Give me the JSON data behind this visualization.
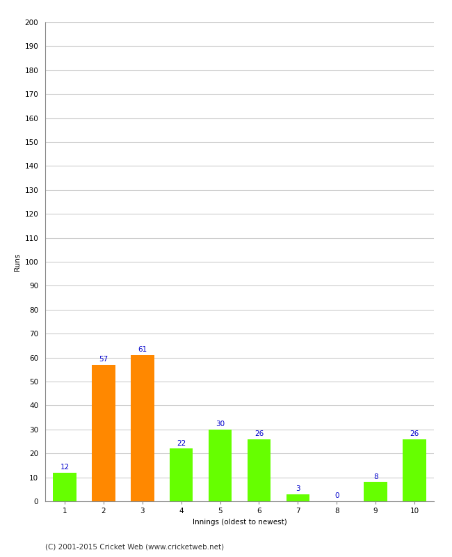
{
  "categories": [
    "1",
    "2",
    "3",
    "4",
    "5",
    "6",
    "7",
    "8",
    "9",
    "10"
  ],
  "values": [
    12,
    57,
    61,
    22,
    30,
    26,
    3,
    0,
    8,
    26
  ],
  "bar_colors": [
    "#66ff00",
    "#ff8800",
    "#ff8800",
    "#66ff00",
    "#66ff00",
    "#66ff00",
    "#66ff00",
    "#66ff00",
    "#66ff00",
    "#66ff00"
  ],
  "xlabel": "Innings (oldest to newest)",
  "ylabel": "Runs",
  "ylim": [
    0,
    200
  ],
  "yticks": [
    0,
    10,
    20,
    30,
    40,
    50,
    60,
    70,
    80,
    90,
    100,
    110,
    120,
    130,
    140,
    150,
    160,
    170,
    180,
    190,
    200
  ],
  "label_color": "#0000cc",
  "label_fontsize": 7.5,
  "axis_label_fontsize": 7.5,
  "tick_fontsize": 7.5,
  "footer_text": "(C) 2001-2015 Cricket Web (www.cricketweb.net)",
  "footer_fontsize": 7.5,
  "background_color": "#ffffff",
  "grid_color": "#cccccc"
}
